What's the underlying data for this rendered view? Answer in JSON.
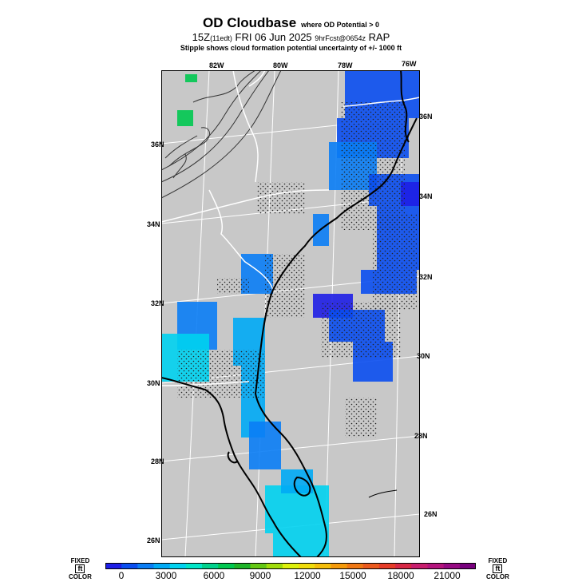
{
  "header": {
    "title": "OD Cloudbase",
    "title_note": "where OD Potential > 0",
    "valid_time": "15Z",
    "valid_local": "(11edt)",
    "date": "FRI 06 Jun 2025",
    "forecast_info": "9hrFcst@0654z",
    "model": "RAP",
    "stipple_note": "Stipple shows cloud formation potential uncertainty of +/- 1000 ft"
  },
  "map": {
    "lon_labels": [
      "82W",
      "80W",
      "78W",
      "76W"
    ],
    "lat_labels_left": [
      "36N",
      "34N",
      "32N",
      "30N",
      "28N",
      "26N"
    ],
    "lat_labels_right": [
      "36N",
      "34N",
      "32N",
      "30N",
      "28N",
      "26N"
    ],
    "land_color": "#c8c8c8"
  },
  "colorbar": {
    "left_label_top": "FIXED",
    "left_label_unit": "ft",
    "left_label_bottom": "COLOR",
    "right_label_top": "FIXED",
    "right_label_unit": "ft",
    "right_label_bottom": "COLOR",
    "tick_labels": [
      "0",
      "3000",
      "6000",
      "9000",
      "12000",
      "15000",
      "18000",
      "21000"
    ],
    "colors": [
      "#1e1ee6",
      "#0a4ef0",
      "#0a7df5",
      "#00aaf5",
      "#00d2f0",
      "#00e6c8",
      "#00d28c",
      "#00c850",
      "#1eb428",
      "#64c814",
      "#a0dc0a",
      "#dcf00a",
      "#f0dc0a",
      "#f5be0a",
      "#f59a0a",
      "#f07814",
      "#eb5a1e",
      "#e63c28",
      "#d72846",
      "#c81e6e",
      "#b4147d",
      "#960a82",
      "#78007d"
    ]
  }
}
